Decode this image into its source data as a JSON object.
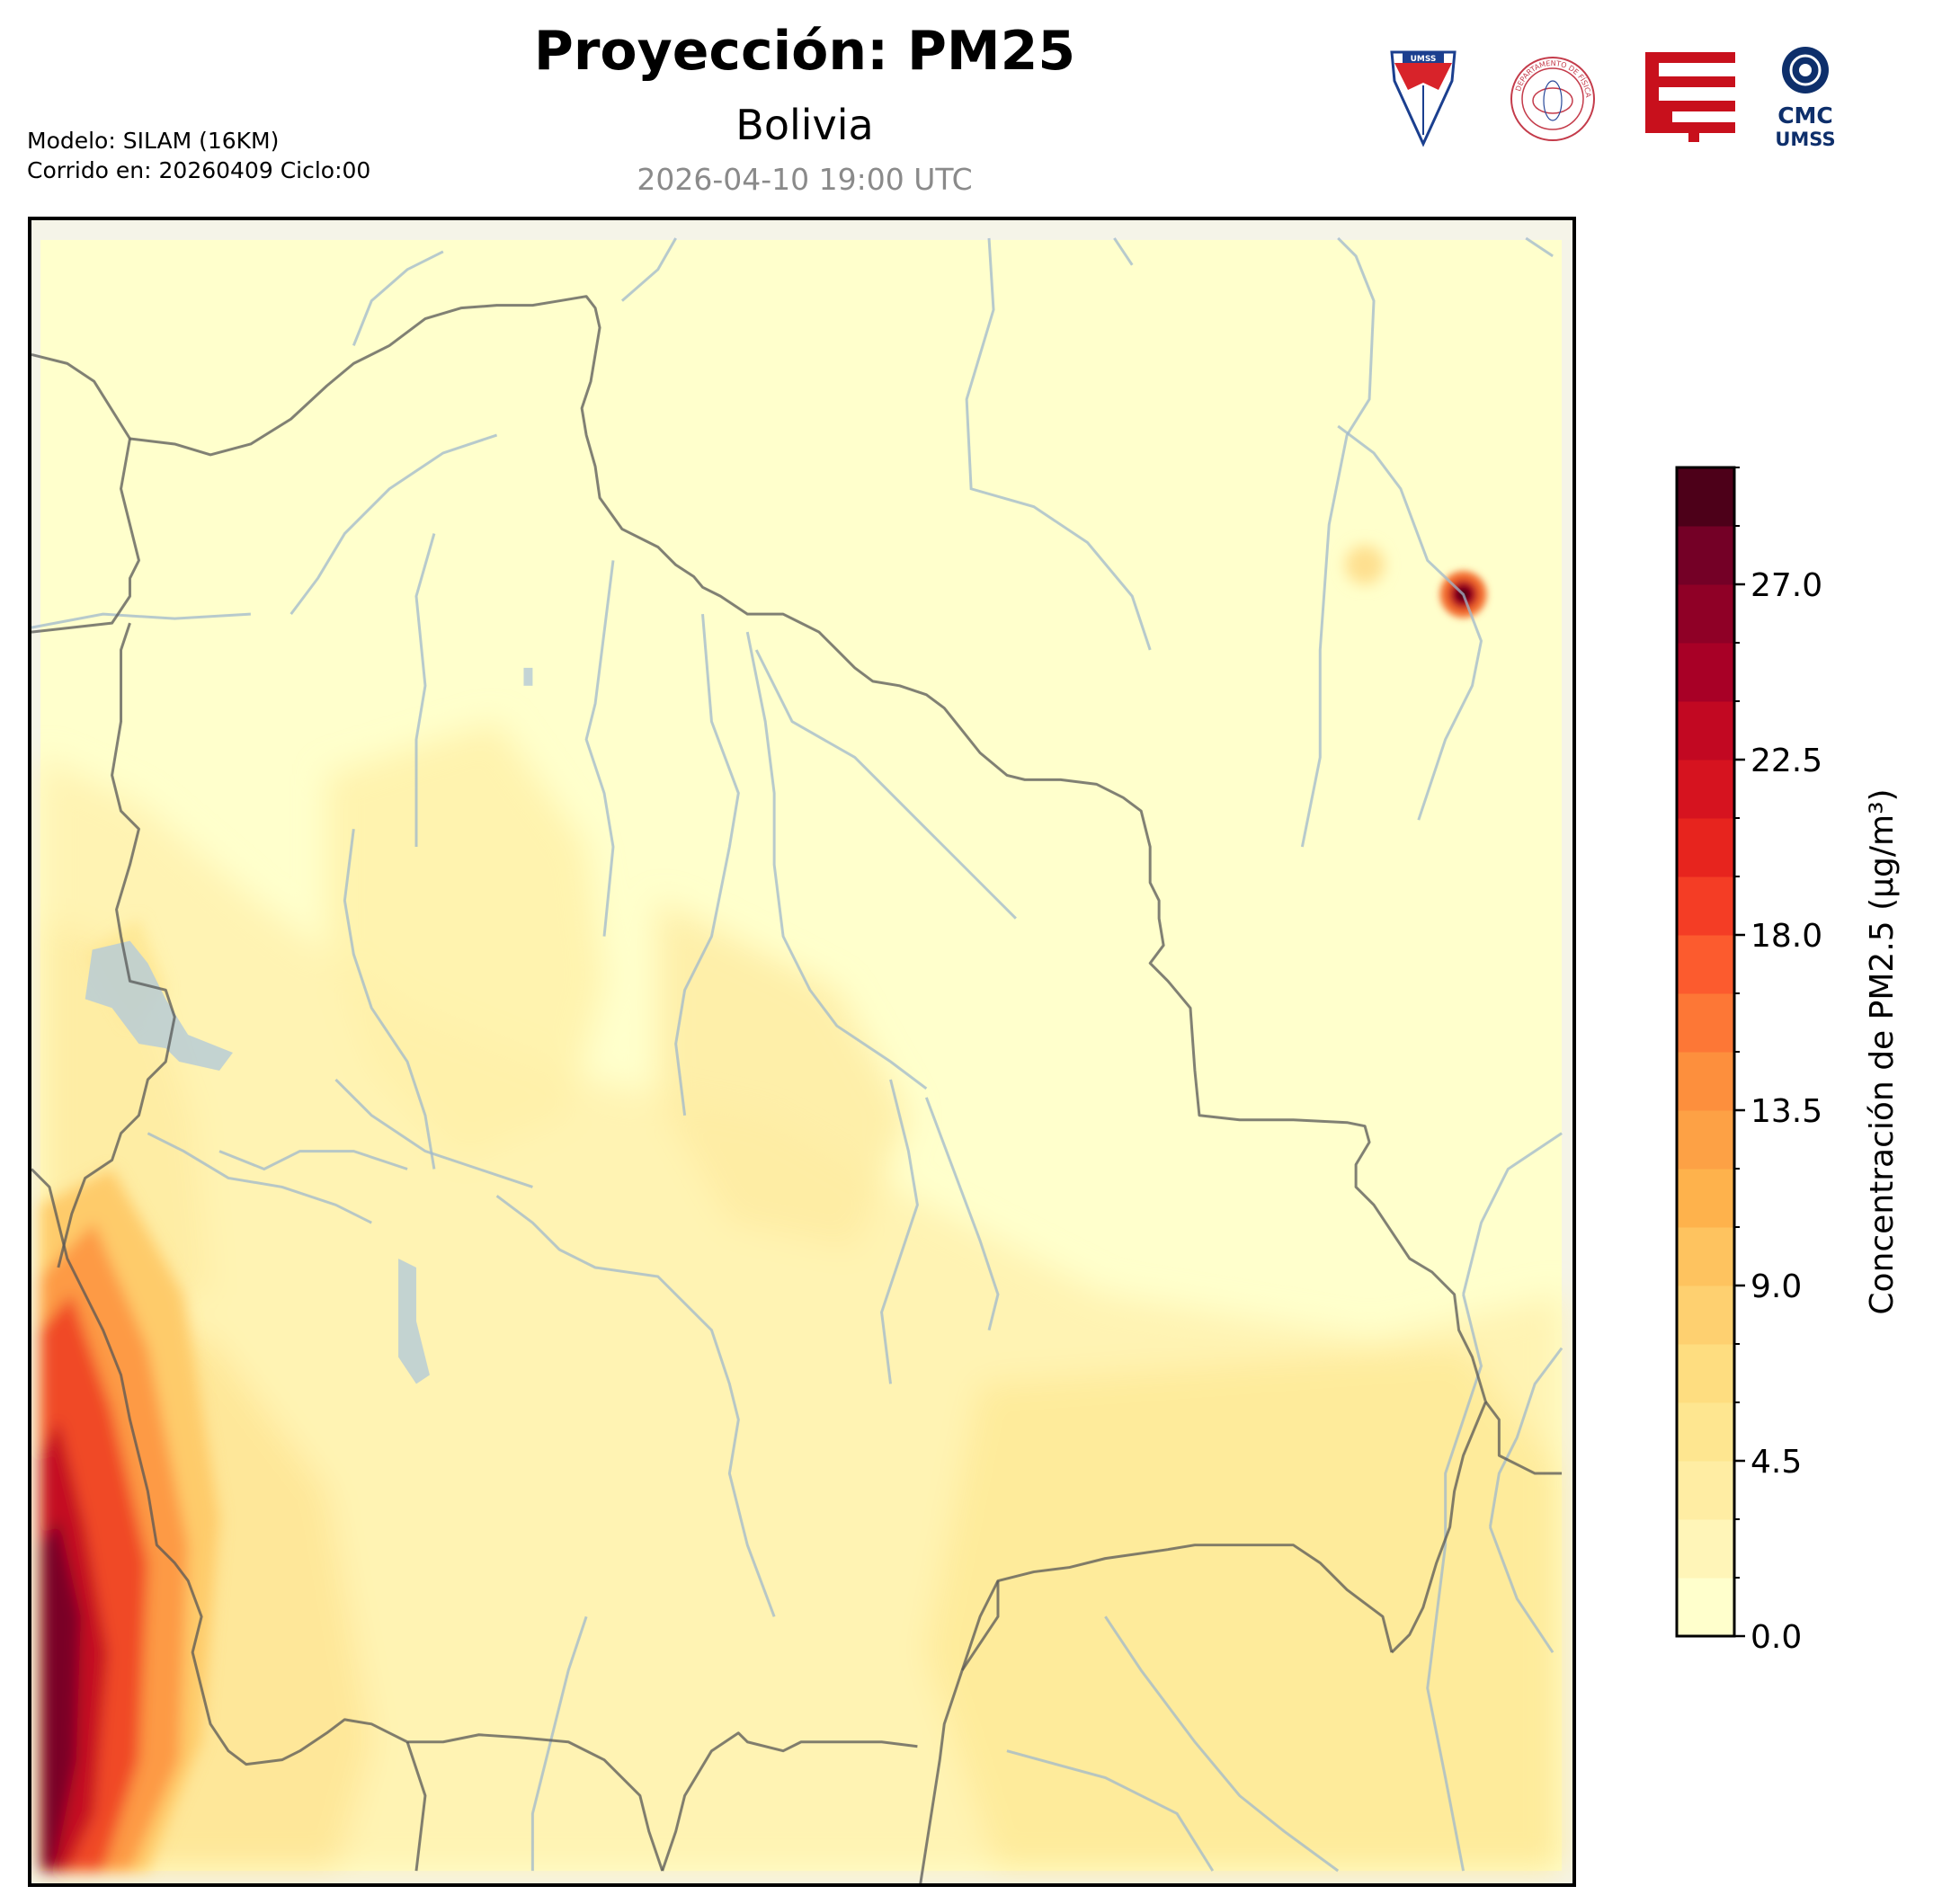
{
  "header": {
    "title": "Proyección: PM25",
    "subtitle": "Bolivia",
    "datetime": "2026-04-10 19:00 UTC",
    "model_line": "Modelo: SILAM (16KM)",
    "run_line": "Corrido en: 20260409 Ciclo:00"
  },
  "logos": [
    {
      "name": "umss-shield-logo",
      "text": "UMSS"
    },
    {
      "name": "departamento-fisica-seal-logo",
      "text": "DEPARTAMENTO DE FÍSICA"
    },
    {
      "name": "red-geometric-logo",
      "text": ""
    },
    {
      "name": "cmc-umss-logo",
      "text": "CMC UMSS"
    }
  ],
  "colorbar": {
    "label": "Concentración de PM2.5 (μg/m³)",
    "min": 0,
    "max": 30,
    "levels": 20,
    "ticks": [
      "0.0",
      "4.5",
      "9.0",
      "13.5",
      "18.0",
      "22.5",
      "27.0"
    ],
    "tick_values": [
      0,
      4.5,
      9,
      13.5,
      18,
      22.5,
      27
    ],
    "colors": [
      "#ffffcc",
      "#fff5b8",
      "#ffeda3",
      "#fee690",
      "#fedd80",
      "#fed070",
      "#fec35f",
      "#feb24c",
      "#fda145",
      "#fd8f3d",
      "#fd7736",
      "#fc5b2e",
      "#f43d25",
      "#e7241e",
      "#d6131f",
      "#c20822",
      "#a80026",
      "#8f0026",
      "#740026",
      "#4d0019"
    ]
  },
  "map": {
    "background_color": "#ffffcc",
    "border_color": "#555555",
    "river_color": "#9fb8cc"
  }
}
